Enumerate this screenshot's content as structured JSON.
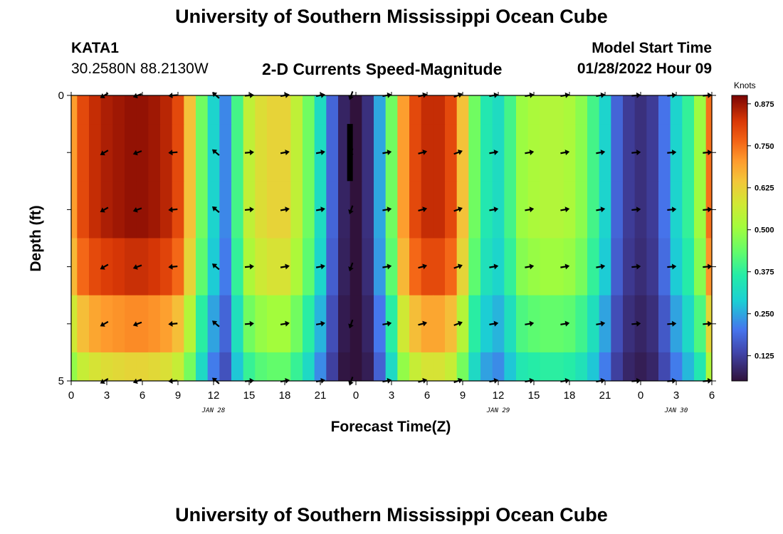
{
  "header": {
    "title": "University of Southern Mississippi Ocean Cube",
    "station_id": "KATA1",
    "coordinates": "30.2580N  88.2130W",
    "subtitle": "2-D Currents Speed-Magnitude",
    "model_start_label": "Model Start Time",
    "model_start_value": "01/28/2022 Hour 09"
  },
  "footer": {
    "title": "University of Southern Mississippi Ocean Cube"
  },
  "chart_data": {
    "type": "heatmap",
    "title": "2-D Currents Speed-Magnitude",
    "xlabel": "Forecast Time(Z)",
    "ylabel": "Depth (ft)",
    "colorbar_label": "Knots",
    "colorbar_ticks": [
      "0.875",
      "0.750",
      "0.625",
      "0.500",
      "0.375",
      "0.250",
      "0.125"
    ],
    "colorbar_tick_values": [
      0.875,
      0.75,
      0.625,
      0.5,
      0.375,
      0.25,
      0.125
    ],
    "color_range": [
      0.05,
      0.9
    ],
    "x_ticks": [
      "0",
      "3",
      "6",
      "9",
      "12",
      "15",
      "18",
      "21",
      "0",
      "3",
      "6",
      "9",
      "12",
      "15",
      "18",
      "21",
      "0",
      "3",
      "6"
    ],
    "x_tick_hours": [
      0,
      3,
      6,
      9,
      12,
      15,
      18,
      21,
      24,
      27,
      30,
      33,
      36,
      39,
      42,
      45,
      48,
      51,
      54
    ],
    "date_labels": [
      {
        "text": "JAN 28",
        "hour": 12
      },
      {
        "text": "JAN 29",
        "hour": 36
      },
      {
        "text": "JAN 30",
        "hour": 51
      }
    ],
    "xlim": [
      0,
      54
    ],
    "y_tick_labels": [
      {
        "text": "0",
        "depth": 0
      },
      {
        "text": "5",
        "depth": 5
      }
    ],
    "ylim": [
      0,
      5
    ],
    "depth_levels": [
      0,
      1,
      2,
      3,
      4,
      5
    ],
    "depth_band_edges": [
      0,
      0.5,
      1.5,
      2.5,
      3.5,
      4.5,
      5
    ],
    "time_step_hours": 1,
    "profile_hours": [
      0,
      1,
      2,
      3,
      4,
      5,
      6,
      7,
      8,
      9,
      10,
      11,
      12,
      13,
      14,
      15,
      16,
      17,
      18,
      19,
      20,
      21,
      22,
      23,
      24,
      25,
      26,
      27,
      28,
      29,
      30,
      31,
      32,
      33,
      34,
      35,
      36,
      37,
      38,
      39,
      40,
      41,
      42,
      43,
      44,
      45,
      46,
      47,
      48,
      49,
      50,
      51,
      52,
      53,
      54
    ],
    "profile_speeds": [
      0.7,
      0.8,
      0.84,
      0.86,
      0.87,
      0.88,
      0.88,
      0.87,
      0.85,
      0.8,
      0.65,
      0.45,
      0.3,
      0.22,
      0.4,
      0.55,
      0.6,
      0.62,
      0.62,
      0.55,
      0.45,
      0.32,
      0.18,
      0.08,
      0.05,
      0.1,
      0.25,
      0.45,
      0.7,
      0.8,
      0.84,
      0.84,
      0.8,
      0.65,
      0.45,
      0.35,
      0.32,
      0.4,
      0.5,
      0.52,
      0.53,
      0.53,
      0.52,
      0.48,
      0.4,
      0.3,
      0.18,
      0.12,
      0.1,
      0.12,
      0.2,
      0.3,
      0.38,
      0.5,
      0.75
    ],
    "depth_scale": [
      1.0,
      1.0,
      1.0,
      0.95,
      0.82,
      0.7
    ],
    "arrow_hours": [
      2.8,
      5.6,
      8.6,
      12.2,
      15.0,
      18.0,
      21.0,
      23.6,
      26.6,
      29.6,
      32.6,
      35.6,
      38.6,
      41.6,
      44.6,
      47.6,
      50.6,
      53.6
    ],
    "arrow_directions_deg": [
      210,
      200,
      185,
      140,
      5,
      10,
      10,
      250,
      10,
      15,
      20,
      10,
      10,
      10,
      10,
      5,
      5,
      5
    ],
    "max_speed_marker": {
      "hour": 23.5,
      "depth_from": 0.5,
      "depth_to": 1.5
    }
  }
}
